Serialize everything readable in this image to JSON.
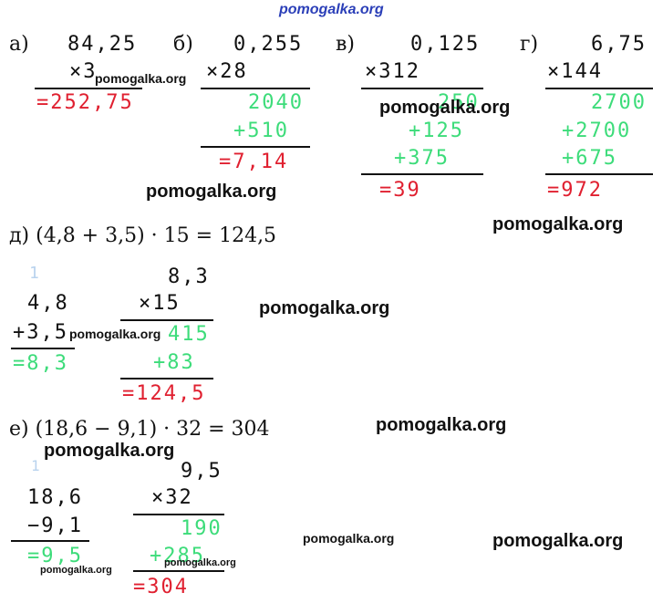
{
  "watermark_top": "pomogalka.org",
  "a": {
    "label": "а)",
    "num": "84,25",
    "mult": "×3",
    "result": "=252,75"
  },
  "b": {
    "label": "б)",
    "num": "0,255",
    "mult": "×28",
    "p1": "2040",
    "p2": "+510",
    "result": "=7,14"
  },
  "v": {
    "label": "в)",
    "num": "0,125",
    "mult": "×312",
    "p1": "250",
    "p2": "+125",
    "p3": "+375",
    "result": "=39"
  },
  "g": {
    "label": "г)",
    "num": "6,75",
    "mult": "×144",
    "p1": "2700",
    "p2": "+2700",
    "p3": "+675",
    "result": "=972"
  },
  "d": {
    "expression": "д) (4,8 + 3,5) · 15 = 124,5",
    "carry": "1",
    "add_a": "4,8",
    "add_b": "+3,5",
    "add_result": "=8,3",
    "mul_num": "8,3",
    "mul_by": "×15",
    "p1": "415",
    "p2": "+83",
    "result": "=124,5"
  },
  "e": {
    "expression": "е) (18,6 − 9,1) · 32 = 304",
    "borrow": "1",
    "sub_a": "18,6",
    "sub_b": "−9,1",
    "sub_result": "=9,5",
    "mul_num": "9,5",
    "mul_by": "×32",
    "p1": "190",
    "p2": "+285",
    "result": "=304"
  },
  "watermark": "pomogalka.org"
}
